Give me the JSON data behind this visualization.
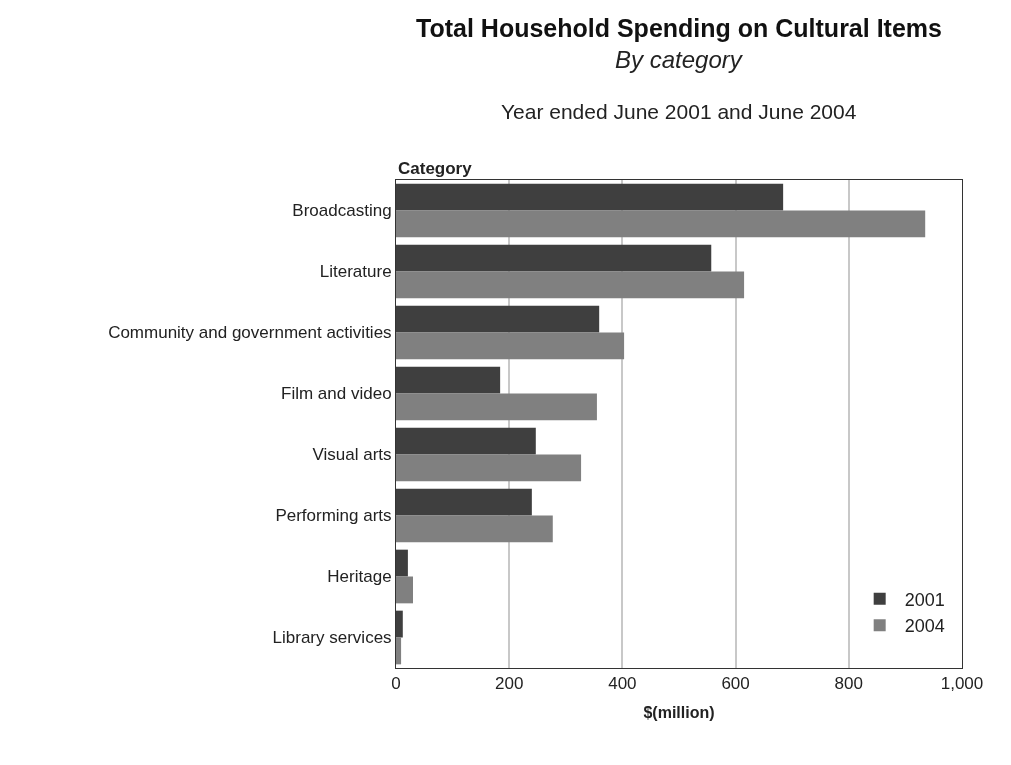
{
  "chart_data": {
    "type": "bar",
    "orientation": "horizontal",
    "title": "Total Household Spending on Cultural Items",
    "subtitle": "By category",
    "annotations": [
      "Year ended June 2001 and June 2004"
    ],
    "ylabel": "Category",
    "xlabel": "$(million)",
    "categories": [
      "Broadcasting",
      "Literature",
      "Community and government activities",
      "Film and video",
      "Visual arts",
      "Performing arts",
      "Heritage",
      "Library services"
    ],
    "series": [
      {
        "name": "2001",
        "color": "#3f3f3f",
        "values": [
          684,
          557,
          359,
          184,
          247,
          240,
          21,
          12
        ]
      },
      {
        "name": "2004",
        "color": "#808080",
        "values": [
          935,
          615,
          403,
          355,
          327,
          277,
          30,
          9
        ]
      }
    ],
    "xlim": [
      0,
      1000
    ],
    "xticks": [
      0,
      200,
      400,
      600,
      800,
      {
        "value": 1000,
        "label": "1,000"
      }
    ],
    "grid": "x",
    "legend": "bottom right"
  }
}
